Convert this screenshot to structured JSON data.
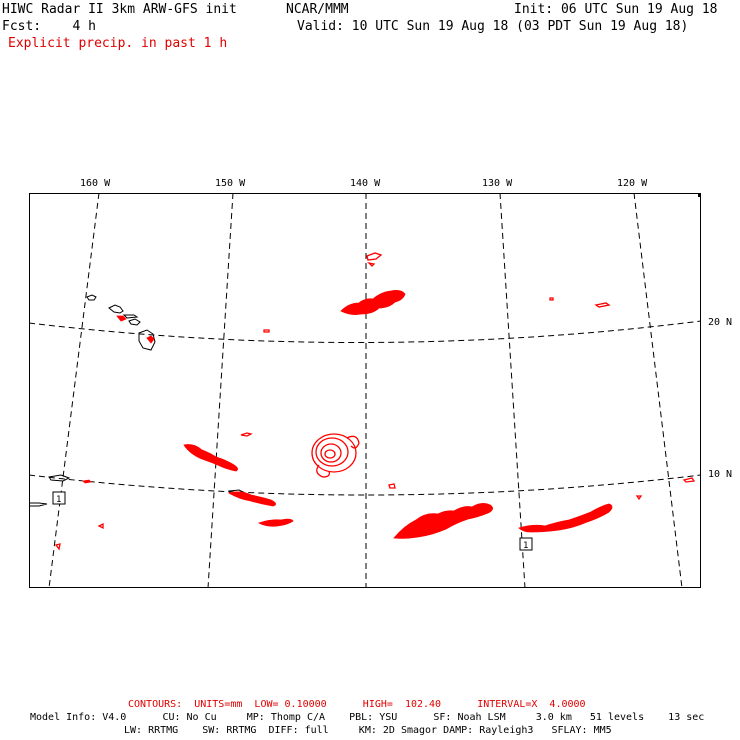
{
  "header": {
    "title": "HIWC Radar II 3km ARW-GFS init",
    "org": "NCAR/MMM",
    "init": "Init: 06 UTC Sun 19 Aug 18",
    "fcst": "Fcst:    4 h",
    "valid": "Valid: 10 UTC Sun 19 Aug 18 (03 PDT Sun 19 Aug 18)",
    "field": "Explicit precip. in past 1 h"
  },
  "map": {
    "lon_labels": [
      "160 W",
      "150 W",
      "140 W",
      "130 W",
      "120 W"
    ],
    "lat_labels": [
      "20 N",
      "10 N"
    ],
    "marker_label": "1",
    "colors": {
      "precip": "#ff0000",
      "grid": "#000000",
      "coast": "#000000"
    }
  },
  "footer": {
    "contours": "CONTOURS:  UNITS=mm  LOW= 0.10000      HIGH=  102.40      INTERVAL=X  4.0000",
    "model_line1": "Model Info: V4.0      CU: No Cu     MP: Thomp C/A    PBL: YSU      SF: Noah LSM     3.0 km   51 levels    13 sec",
    "model_line2": "LW: RRTMG    SW: RRTMG  DIFF: full     KM: 2D Smagor DAMP: Rayleigh3   SFLAY: MM5"
  }
}
